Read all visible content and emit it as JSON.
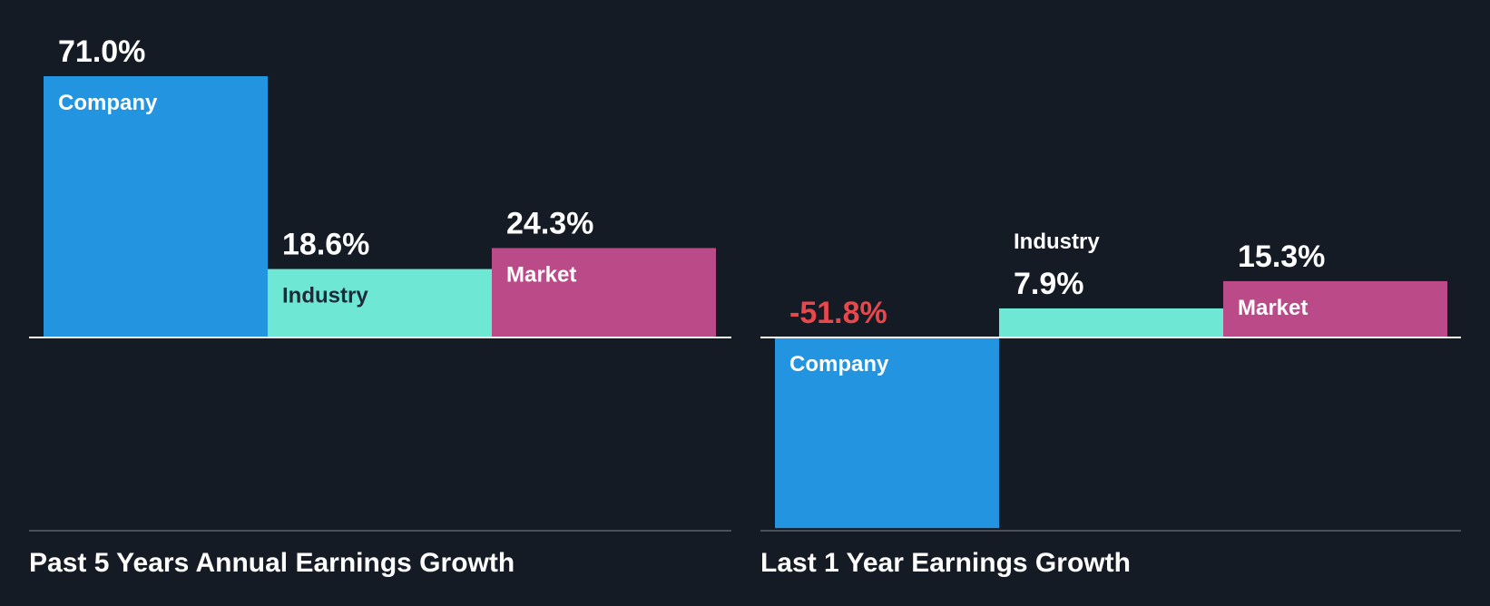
{
  "colors": {
    "background": "#151b24",
    "company": "#2394e0",
    "industry": "#6fe7d5",
    "market": "#bb4a88",
    "negative_label": "#e8474b",
    "text": "#ffffff",
    "dark_text": "#1e2a38",
    "baseline": "#ffffff",
    "footer_line": "#4a505a"
  },
  "chart_data": [
    {
      "type": "bar",
      "title": "Past 5 Years Annual Earnings Growth",
      "categories": [
        "Company",
        "Industry",
        "Market"
      ],
      "values": [
        71.0,
        18.6,
        24.3
      ],
      "value_labels": [
        "71.0%",
        "18.6%",
        "24.3%"
      ],
      "unit": "%",
      "ylim": [
        -52,
        71
      ],
      "grid": false,
      "legend": "none"
    },
    {
      "type": "bar",
      "title": "Last 1 Year Earnings Growth",
      "categories": [
        "Company",
        "Industry",
        "Market"
      ],
      "values": [
        -51.8,
        7.9,
        15.3
      ],
      "value_labels": [
        "-51.8%",
        "7.9%",
        "15.3%"
      ],
      "unit": "%",
      "ylim": [
        -52,
        71
      ],
      "grid": false,
      "legend": "none"
    }
  ]
}
